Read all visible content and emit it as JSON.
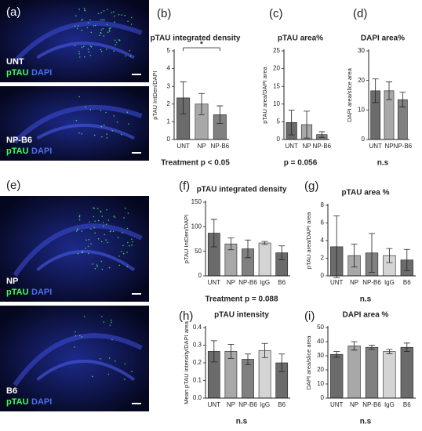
{
  "image_panels": [
    {
      "label": "(a)",
      "images": [
        {
          "group": "UNT",
          "stains": [
            "pTAU",
            "DAPI"
          ]
        },
        {
          "group": "NP-B6",
          "stains": [
            "pTAU",
            "DAPI"
          ]
        }
      ]
    },
    {
      "label": "(e)",
      "images": [
        {
          "group": "NP",
          "stains": [
            "pTAU",
            "DAPI"
          ]
        },
        {
          "group": "B6",
          "stains": [
            "pTAU",
            "DAPI"
          ]
        }
      ]
    }
  ],
  "chart_data": [
    {
      "type": "bar",
      "panel": "(b)",
      "title": "pTAU integrated density",
      "ylabel": "pTAU IntDen/DAPI",
      "categories": [
        "UNT",
        "NP",
        "NP-B6"
      ],
      "values": [
        2.35,
        2.0,
        1.4
      ],
      "errors": [
        0.9,
        0.6,
        0.5
      ],
      "colors": [
        "#6b6b6b",
        "#a8a8a8",
        "#808080"
      ],
      "ylim": [
        0,
        5
      ],
      "yticks": [
        0,
        1,
        2,
        3,
        4,
        5
      ],
      "annotation": "*",
      "footer": "Treatment p < 0.05"
    },
    {
      "type": "bar",
      "panel": "(c)",
      "title": "pTAU area%",
      "ylabel": "pTAU area/DAPI area",
      "categories": [
        "UNT",
        "NP",
        "NP-B6"
      ],
      "values": [
        4.8,
        4.2,
        1.4
      ],
      "errors": [
        3.5,
        3.8,
        0.8
      ],
      "colors": [
        "#6b6b6b",
        "#a8a8a8",
        "#808080"
      ],
      "ylim": [
        0,
        25
      ],
      "yticks": [
        0,
        5,
        10,
        15,
        20,
        25
      ],
      "footer": "p = 0.056"
    },
    {
      "type": "bar",
      "panel": "(d)",
      "title": "DAPI area%",
      "ylabel": "DAPI area/slice area",
      "categories": [
        "UNT",
        "NP",
        "NP-B6"
      ],
      "values": [
        16.5,
        16.5,
        13.5
      ],
      "errors": [
        4,
        3,
        2.5
      ],
      "colors": [
        "#6b6b6b",
        "#a8a8a8",
        "#808080"
      ],
      "ylim": [
        0,
        30
      ],
      "yticks": [
        0,
        10,
        20,
        30
      ],
      "footer": "n.s"
    },
    {
      "type": "bar",
      "panel": "(f)",
      "title": "pTAU integrated density",
      "ylabel": "pTAU IntDen/DAPI",
      "categories": [
        "UNT",
        "NP",
        "NP-B6",
        "IgG",
        "B6"
      ],
      "values": [
        87,
        65,
        55,
        67,
        47
      ],
      "errors": [
        28,
        12,
        18,
        3,
        14
      ],
      "colors": [
        "#6b6b6b",
        "#a8a8a8",
        "#808080",
        "#d4d4d4",
        "#6b6b6b"
      ],
      "ylim": [
        0,
        150
      ],
      "yticks": [
        0,
        50,
        100,
        150
      ],
      "footer": "Treatment p = 0.088"
    },
    {
      "type": "bar",
      "panel": "(g)",
      "title": "pTAU area %",
      "ylabel": "pTAU area/DAPI area",
      "categories": [
        "UNT",
        "NP",
        "NP-B6",
        "IgG",
        "B6"
      ],
      "values": [
        3.3,
        2.3,
        2.6,
        2.3,
        1.8
      ],
      "errors": [
        3.5,
        1.3,
        2.2,
        0.8,
        1.2
      ],
      "colors": [
        "#6b6b6b",
        "#a8a8a8",
        "#808080",
        "#d4d4d4",
        "#6b6b6b"
      ],
      "ylim": [
        0,
        8
      ],
      "yticks": [
        0,
        2,
        4,
        6,
        8
      ],
      "footer": "n.s"
    },
    {
      "type": "bar",
      "panel": "(h)",
      "title": "pTAU intensity",
      "ylabel": "Mean pTAU intensity/DAPI area",
      "categories": [
        "UNT",
        "NP",
        "NP-B6",
        "IgG",
        "B6"
      ],
      "values": [
        0.265,
        0.265,
        0.22,
        0.27,
        0.2
      ],
      "errors": [
        0.06,
        0.04,
        0.03,
        0.04,
        0.05
      ],
      "colors": [
        "#6b6b6b",
        "#a8a8a8",
        "#808080",
        "#d4d4d4",
        "#6b6b6b"
      ],
      "ylim": [
        0,
        0.4
      ],
      "yticks": [
        {
          "value": 0,
          "label": "0.0"
        },
        0.1,
        0.2,
        0.3,
        0.4
      ],
      "footer": "n.s"
    },
    {
      "type": "bar",
      "panel": "(i)",
      "title": "DAPI area %",
      "ylabel": "DAPI area/slice area",
      "categories": [
        "UNT",
        "NP",
        "NP-B6",
        "IgG",
        "B6"
      ],
      "values": [
        31,
        37,
        36,
        33,
        36
      ],
      "errors": [
        2,
        3,
        1.5,
        1.5,
        3
      ],
      "colors": [
        "#6b6b6b",
        "#a8a8a8",
        "#808080",
        "#d4d4d4",
        "#6b6b6b"
      ],
      "ylim": [
        0,
        50
      ],
      "yticks": [
        0,
        10,
        20,
        30,
        40,
        50
      ],
      "footer": "n.s"
    }
  ]
}
